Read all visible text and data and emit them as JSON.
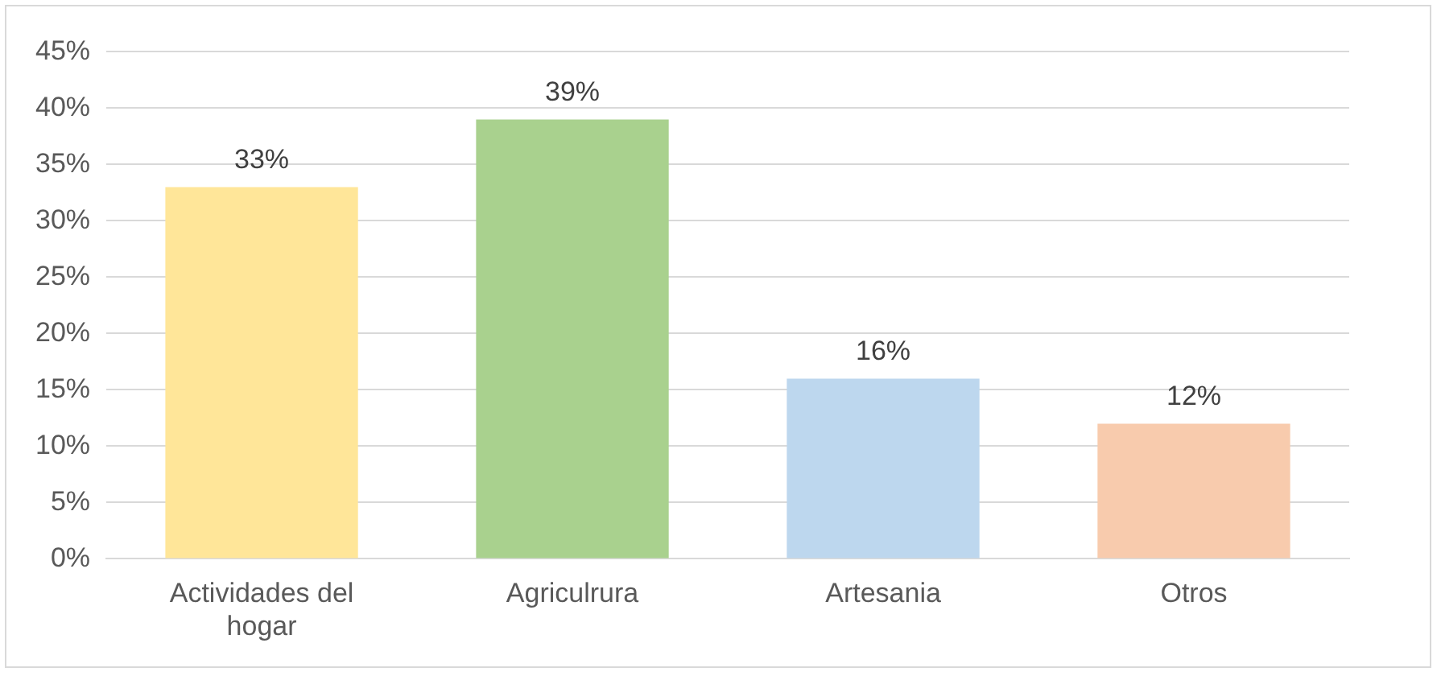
{
  "chart_data": {
    "type": "bar",
    "categories": [
      "Actividades del hogar",
      "Agriculrura",
      "Artesania",
      "Otros"
    ],
    "values": [
      33,
      39,
      16,
      12
    ],
    "colors": [
      "#ffe699",
      "#a9d18e",
      "#bdd7ee",
      "#f8cbad"
    ],
    "value_labels": [
      "33%",
      "39%",
      "16%",
      "12%"
    ],
    "ylim": [
      0,
      45
    ],
    "yticks": [
      {
        "value": 0,
        "label": "0%"
      },
      {
        "value": 5,
        "label": "5%"
      },
      {
        "value": 10,
        "label": "10%"
      },
      {
        "value": 15,
        "label": "15%"
      },
      {
        "value": 20,
        "label": "20%"
      },
      {
        "value": 25,
        "label": "25%"
      },
      {
        "value": 30,
        "label": "30%"
      },
      {
        "value": 35,
        "label": "35%"
      },
      {
        "value": 40,
        "label": "40%"
      },
      {
        "value": 45,
        "label": "45%"
      }
    ],
    "grid": "y",
    "legend": false
  }
}
